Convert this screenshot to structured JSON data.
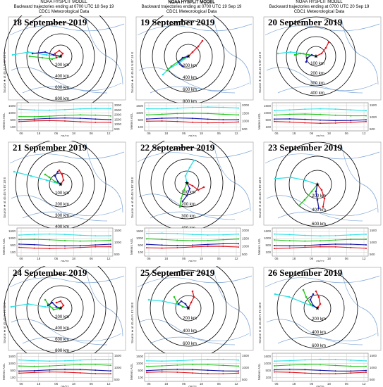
{
  "header": {
    "model": "NOAA HYSPLIT MODEL",
    "subtitles": [
      "Backward trajectories ending at 0700 UTC 18 Sep 19",
      "Backward trajectories ending at 0700 UTC 19 Sep 19",
      "Backward trajectories ending at 0700 UTC 20 Sep 19"
    ],
    "meteo": "CDC1 Meteorological Data"
  },
  "source_label": "Source ★ at 45.45 N 87.18 E",
  "y_axis_label": "Meters AGL",
  "colors": {
    "red": "#e0141e",
    "blue": "#1a1aa8",
    "green": "#21c41b",
    "cyan": "#2ee0e6",
    "border": "#7fa7d6"
  },
  "panels": [
    {
      "date": "18 September 2019",
      "rings": [
        "200 km",
        "400 km",
        "600 km",
        "800 km",
        "1000 km"
      ],
      "time_ticks": [
        "06",
        "18",
        "06",
        "18",
        "06",
        "12"
      ],
      "day_labels": [
        "09/18"
      ],
      "agl_ticks": [
        "1600",
        "1000",
        "500",
        "100"
      ],
      "level_ticks": [
        "3000",
        "2500",
        "2000",
        "1500",
        "1000",
        "500"
      ]
    },
    {
      "date": "19 September 2019",
      "rings": [
        "200 km",
        "400 km",
        "600 km",
        "800 km"
      ],
      "time_ticks": [
        "06",
        "18",
        "06",
        "18",
        "06",
        "12"
      ],
      "day_labels": [
        "09/19"
      ],
      "agl_ticks": [
        "1600",
        "1000",
        "500",
        "100"
      ],
      "level_ticks": [
        "2000",
        "1500",
        "1000",
        "500"
      ]
    },
    {
      "date": "20 September 2019",
      "rings": [
        "100 km",
        "200 km",
        "300 km",
        "400 km"
      ],
      "time_ticks": [
        "06",
        "18",
        "06",
        "18",
        "06",
        "12"
      ],
      "day_labels": [
        "09/19"
      ],
      "agl_ticks": [
        "1600",
        "1000",
        "500",
        "100"
      ],
      "level_ticks": [
        "1500",
        "1000",
        "500"
      ]
    },
    {
      "date": "21 September 2019",
      "rings": [
        "100 km",
        "200 km",
        "300 km",
        "400 km"
      ],
      "time_ticks": [
        "06",
        "18",
        "06",
        "18",
        "06",
        "12"
      ],
      "day_labels": [
        "09/20"
      ],
      "agl_ticks": [
        "1600",
        "1000",
        "500",
        "100"
      ],
      "level_ticks": [
        "1500",
        "1000",
        "500"
      ]
    },
    {
      "date": "22 September 2019",
      "rings": [
        "100 km",
        "200 km",
        "300 km",
        "400 km"
      ],
      "time_ticks": [
        "06",
        "18",
        "06",
        "18",
        "06",
        "12"
      ],
      "day_labels": [
        "09/22"
      ],
      "agl_ticks": [
        "1600",
        "1000",
        "500",
        "100"
      ],
      "level_ticks": [
        "2000",
        "1500",
        "1000",
        "500"
      ]
    },
    {
      "date": "23 September 2019",
      "rings": [
        "200 km",
        "400 km",
        "600 km"
      ],
      "time_ticks": [
        "06",
        "18",
        "06",
        "18",
        "06",
        "12"
      ],
      "day_labels": [
        "09/22"
      ],
      "agl_ticks": [
        "1600",
        "1000",
        "500",
        "100"
      ],
      "level_ticks": [
        "1500",
        "1000",
        "500"
      ]
    },
    {
      "date": "24 September 2019",
      "rings": [
        "200 km",
        "400 km",
        "600 km",
        "800 km",
        "1000 km"
      ],
      "time_ticks": [
        "06",
        "18",
        "06",
        "18",
        "06",
        "12"
      ],
      "day_labels": [
        "09/22"
      ],
      "agl_ticks": [
        "1600",
        "1000",
        "500",
        "100"
      ],
      "level_ticks": [
        "1500",
        "1000",
        "500"
      ]
    },
    {
      "date": "25 September 2019",
      "rings": [
        "200 km",
        "400 km",
        "600 km",
        "800 km"
      ],
      "time_ticks": [
        "06",
        "18",
        "06",
        "18",
        "06",
        "12"
      ],
      "day_labels": [
        "09/23"
      ],
      "agl_ticks": [
        "1600",
        "1000",
        "500",
        "100"
      ],
      "level_ticks": [
        "1500",
        "1000",
        "500"
      ]
    },
    {
      "date": "26 September 2019",
      "rings": [
        "200 km",
        "400 km",
        "600 km"
      ],
      "time_ticks": [
        "06",
        "18",
        "06",
        "18",
        "06",
        "12"
      ],
      "day_labels": [
        "09/25"
      ],
      "agl_ticks": [
        "1600",
        "1000",
        "500",
        "100"
      ],
      "level_ticks": [
        "1500",
        "1000",
        "500"
      ]
    }
  ]
}
